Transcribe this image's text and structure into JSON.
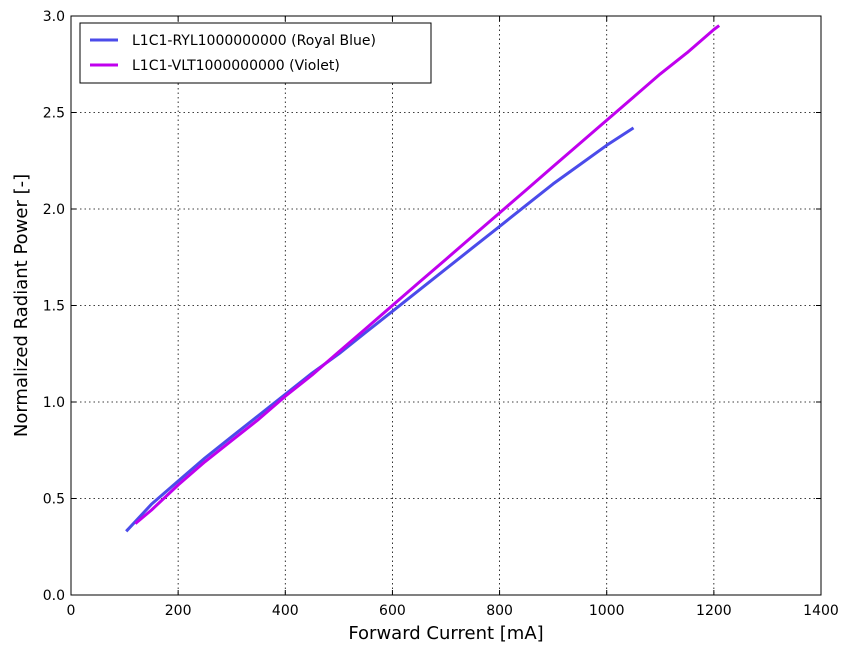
{
  "chart_data": {
    "type": "line",
    "title": "",
    "xlabel": "Forward Current [mA]",
    "ylabel": "Normalized Radiant Power [-]",
    "xlim": [
      0,
      1400
    ],
    "ylim": [
      0,
      3.0
    ],
    "xticks": [
      0,
      200,
      400,
      600,
      800,
      1000,
      1200,
      1400
    ],
    "xtick_labels": [
      "0",
      "200",
      "400",
      "600",
      "800",
      "1000",
      "1200",
      "1400"
    ],
    "yticks": [
      0,
      0.5,
      1.0,
      1.5,
      2.0,
      2.5,
      3.0
    ],
    "ytick_labels": [
      "0.0",
      "0.5",
      "1.0",
      "1.5",
      "2.0",
      "2.5",
      "3.0"
    ],
    "grid": true,
    "legend_position": "top-left",
    "series": [
      {
        "name": "L1C1-RYL1000000000 (Royal Blue)",
        "color": "#4b4bea",
        "x": [
          103,
          150,
          200,
          250,
          300,
          350,
          400,
          450,
          500,
          550,
          600,
          650,
          700,
          750,
          800,
          850,
          900,
          950,
          1000,
          1050
        ],
        "y": [
          0.33,
          0.47,
          0.59,
          0.71,
          0.82,
          0.93,
          1.04,
          1.15,
          1.25,
          1.36,
          1.47,
          1.58,
          1.69,
          1.8,
          1.91,
          2.02,
          2.13,
          2.23,
          2.33,
          2.42
        ]
      },
      {
        "name": "L1C1-VLT1000000000 (Violet)",
        "color": "#c000ee",
        "x": [
          120,
          150,
          200,
          250,
          300,
          350,
          400,
          450,
          500,
          550,
          600,
          650,
          700,
          750,
          800,
          850,
          900,
          950,
          1000,
          1050,
          1100,
          1150,
          1200,
          1210
        ],
        "y": [
          0.37,
          0.44,
          0.57,
          0.69,
          0.8,
          0.91,
          1.03,
          1.14,
          1.26,
          1.38,
          1.5,
          1.62,
          1.74,
          1.86,
          1.98,
          2.1,
          2.22,
          2.34,
          2.46,
          2.58,
          2.7,
          2.81,
          2.93,
          2.95
        ]
      }
    ]
  }
}
